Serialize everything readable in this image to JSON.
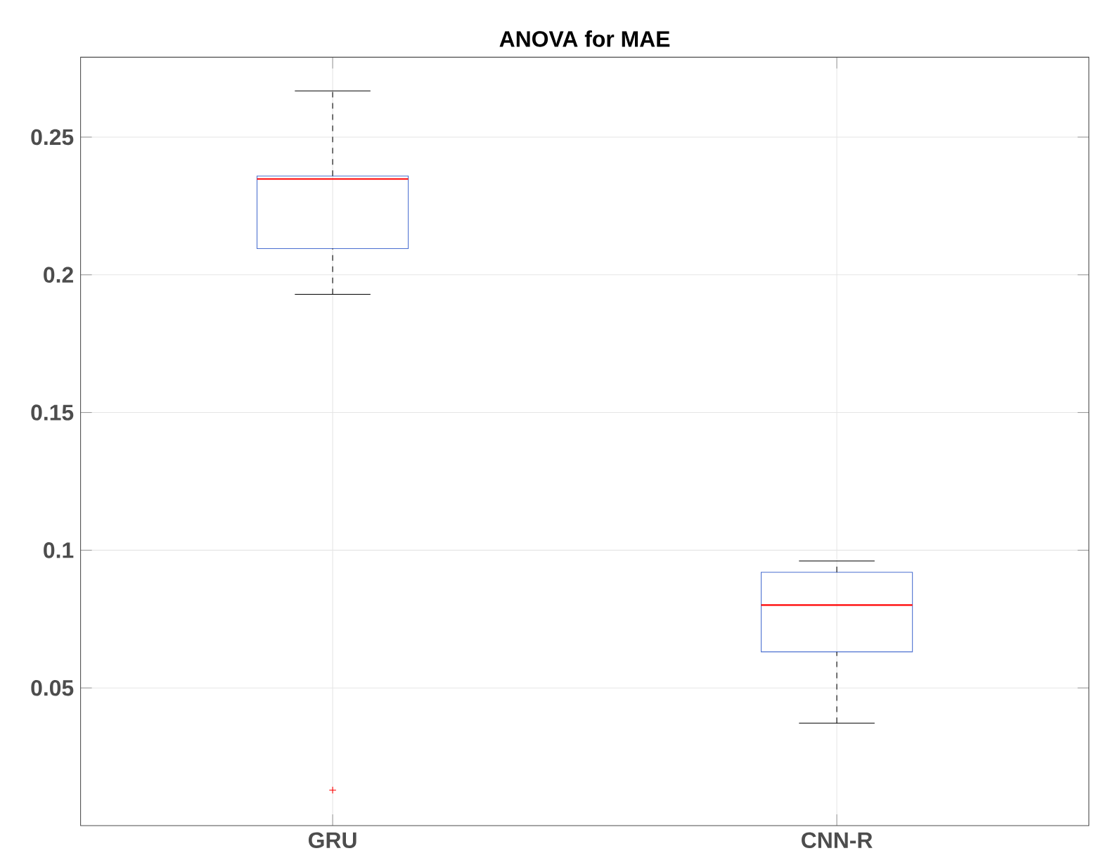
{
  "chart_data": {
    "type": "box",
    "title": "ANOVA for MAE",
    "categories": [
      "GRU",
      "CNN-R"
    ],
    "boxes": [
      {
        "low": 0.1929,
        "q1": 0.2095,
        "median": 0.2348,
        "q3": 0.2359,
        "high": 0.2668,
        "outliers": [
          0.0129
        ]
      },
      {
        "low": 0.0372,
        "q1": 0.0631,
        "median": 0.0801,
        "q3": 0.092,
        "high": 0.0961
      }
    ],
    "color": "#4a6fd0",
    "ylim": [
      0,
      0.279
    ],
    "yticks": [
      0.05,
      0.1,
      0.15,
      0.2,
      0.25
    ],
    "grid": true
  }
}
